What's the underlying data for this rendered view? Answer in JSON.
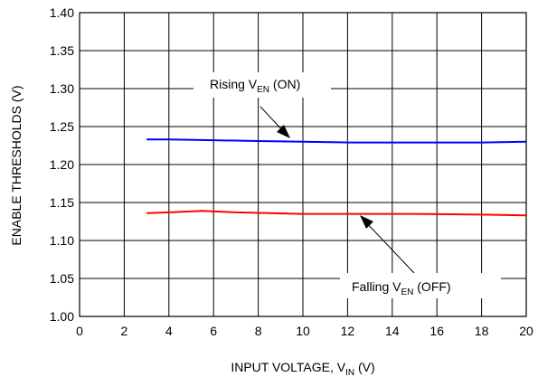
{
  "chart_data": {
    "type": "line",
    "xlabel": {
      "main": "INPUT VOLTAGE, V",
      "sub": "IN",
      "suffix": " (V)"
    },
    "ylabel": "ENABLE THRESHOLDS (V)",
    "xlim": [
      0,
      20
    ],
    "ylim": [
      1.0,
      1.4
    ],
    "xticks": [
      0,
      2,
      4,
      6,
      8,
      10,
      12,
      14,
      16,
      18,
      20
    ],
    "yticks": [
      1.0,
      1.05,
      1.1,
      1.15,
      1.2,
      1.25,
      1.3,
      1.35,
      1.4
    ],
    "xtick_labels": [
      "0",
      "2",
      "4",
      "6",
      "8",
      "10",
      "12",
      "14",
      "16",
      "18",
      "20"
    ],
    "ytick_labels": [
      "1.00",
      "1.05",
      "1.10",
      "1.15",
      "1.20",
      "1.25",
      "1.30",
      "1.35",
      "1.40"
    ],
    "grid": true,
    "series": [
      {
        "label": {
          "main": "Rising V",
          "sub": "EN",
          "suffix": " (ON)"
        },
        "color": "#0000ff",
        "x": [
          3,
          4,
          6,
          8,
          10,
          12,
          14,
          16,
          18,
          20
        ],
        "y": [
          1.233,
          1.233,
          1.232,
          1.231,
          1.23,
          1.229,
          1.229,
          1.229,
          1.229,
          1.23
        ]
      },
      {
        "label": {
          "main": "Falling V",
          "sub": "EN",
          "suffix": " (OFF)"
        },
        "color": "#ff0000",
        "x": [
          3,
          4,
          5.5,
          7,
          10,
          12,
          15,
          18,
          20
        ],
        "y": [
          1.136,
          1.137,
          1.139,
          1.137,
          1.135,
          1.135,
          1.135,
          1.134,
          1.133
        ]
      }
    ]
  }
}
